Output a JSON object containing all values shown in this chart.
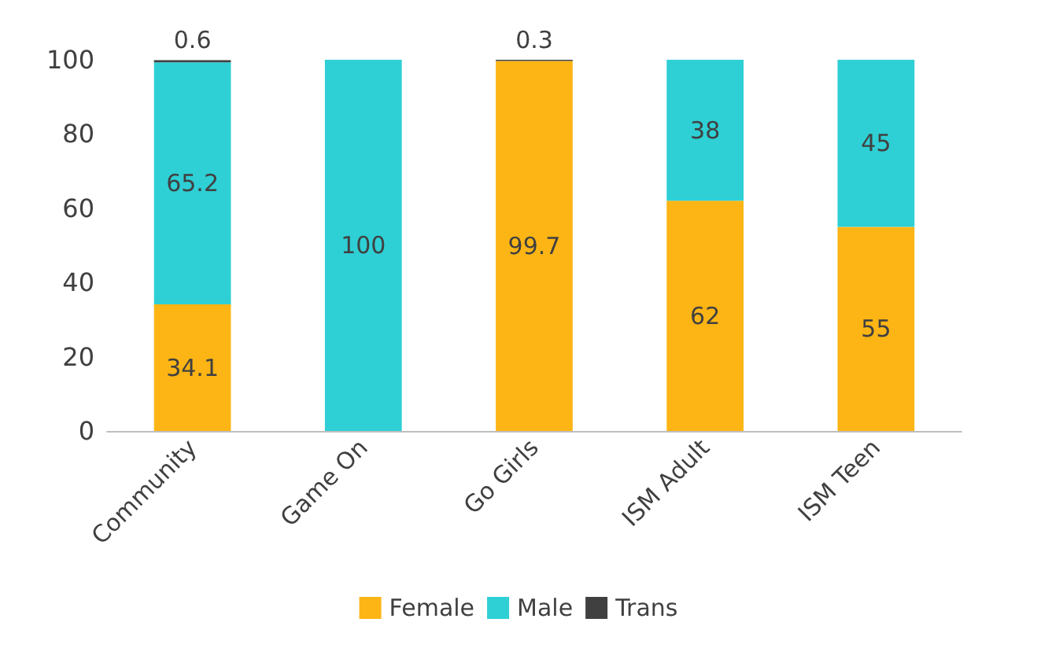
{
  "chart_data": {
    "type": "bar",
    "stacked": true,
    "categories": [
      "Community",
      "Game On",
      "Go Girls",
      "ISM Adult",
      "ISM Teen"
    ],
    "series": [
      {
        "name": "Female",
        "color": "#fdb515",
        "values": [
          34.1,
          0,
          99.7,
          62,
          55
        ],
        "value_labels": [
          "34.1",
          null,
          "99.7",
          "62",
          "55"
        ]
      },
      {
        "name": "Male",
        "color": "#2ecfd5",
        "values": [
          65.2,
          100,
          0,
          38,
          45
        ],
        "value_labels": [
          "65.2",
          "100",
          null,
          "38",
          "45"
        ]
      },
      {
        "name": "Trans",
        "color": "#404040",
        "values": [
          0.6,
          0,
          0.3,
          0,
          0
        ],
        "value_labels": [
          "0.6",
          null,
          "0.3",
          null,
          null
        ]
      }
    ],
    "ylim": [
      0,
      100
    ],
    "yticks": [
      0,
      20,
      40,
      60,
      80,
      100
    ],
    "grid": false,
    "legend": "bottom"
  }
}
